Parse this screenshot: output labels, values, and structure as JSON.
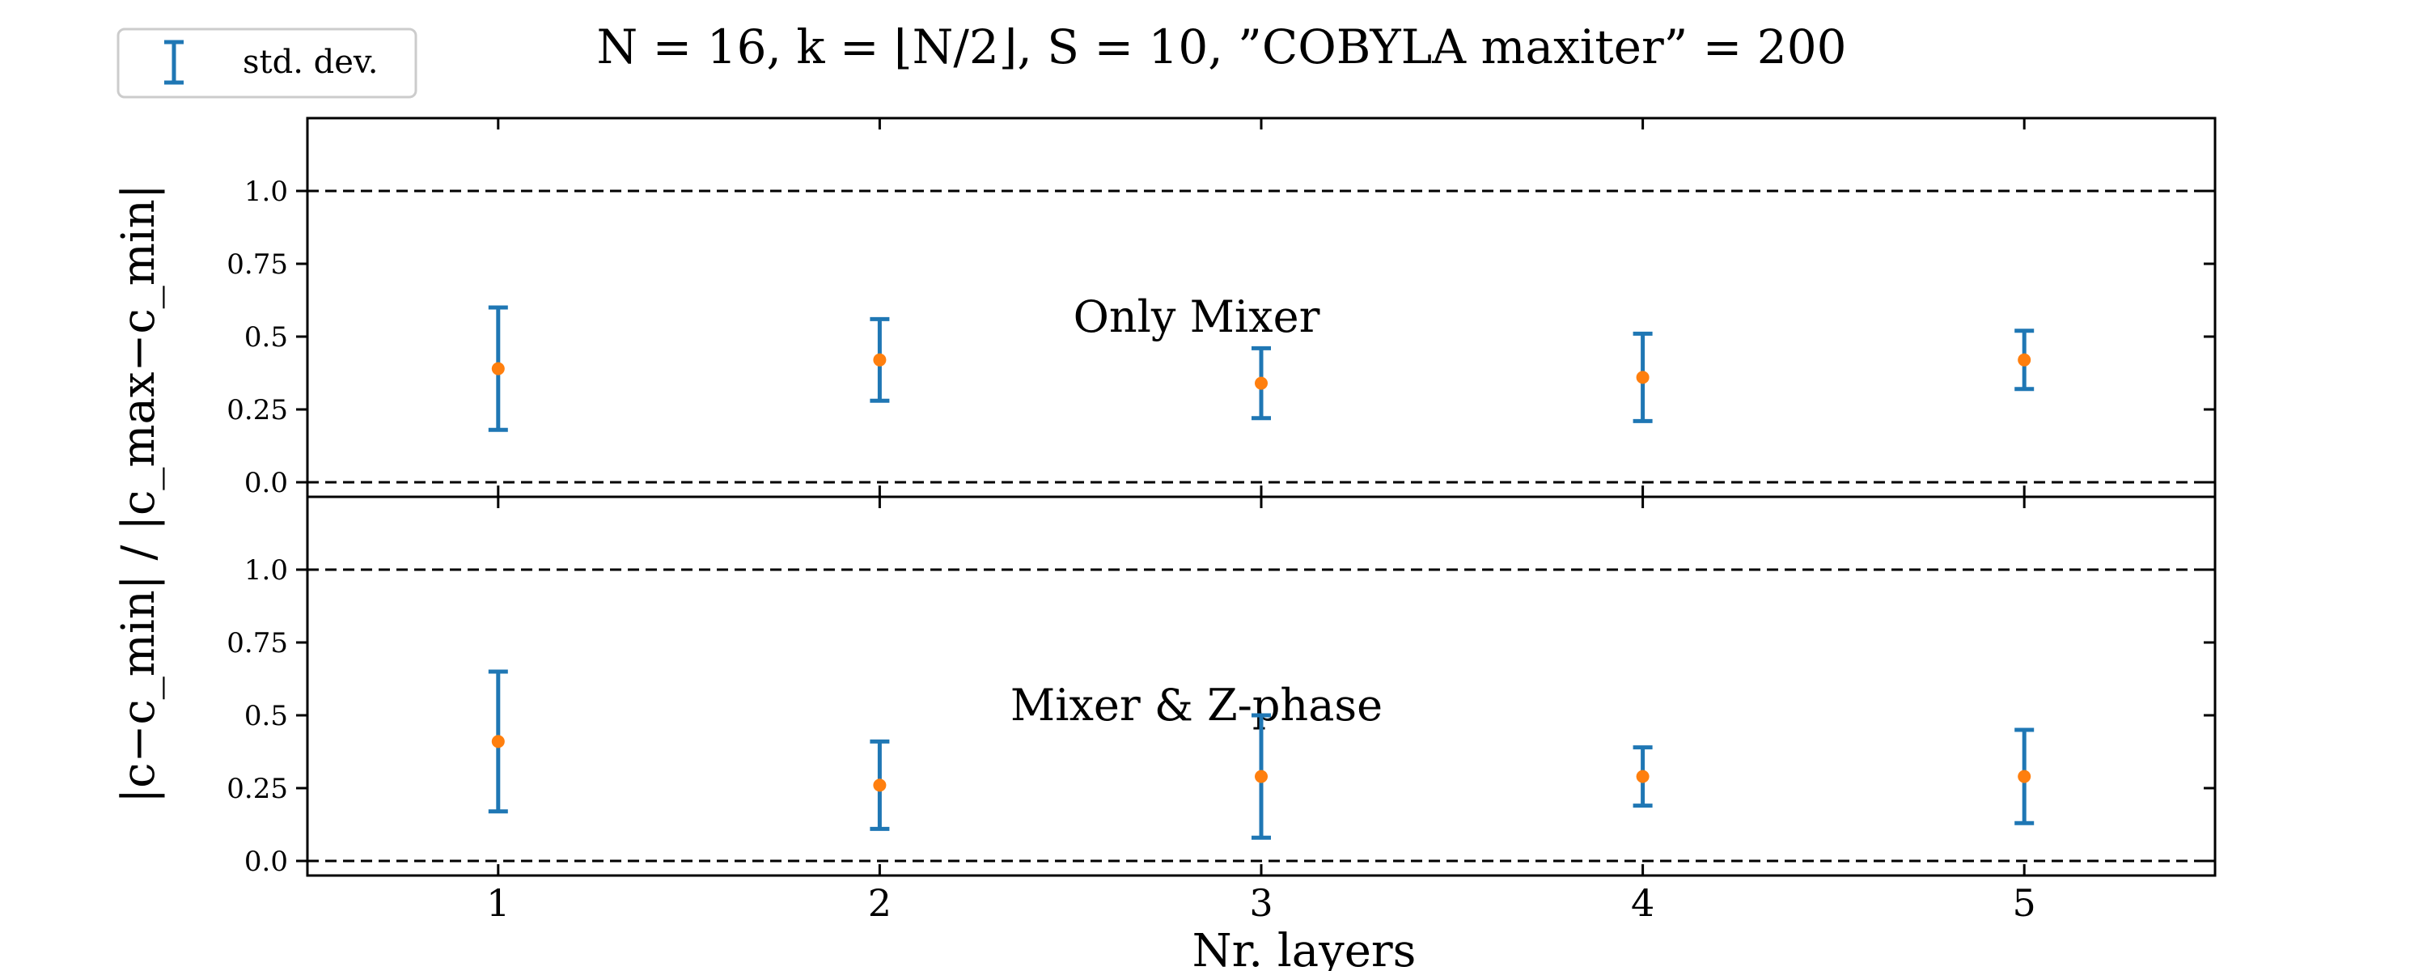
{
  "chart_data": {
    "type": "errorbar",
    "title": "N = 16,    k = ⌊N/2⌋,    S = 10,    ”COBYLA maxiter” = 200",
    "xlabel": "Nr. layers",
    "ylabel": "|c−c_min| / |c_max−c_min|",
    "legend": {
      "label": "std. dev.",
      "position": "top-left"
    },
    "colors": {
      "errorbar": "#1f77b4",
      "marker": "#ff7f0e",
      "reference_line": "#000000"
    },
    "x": [
      1,
      2,
      3,
      4,
      5
    ],
    "xlim": [
      0.5,
      5.5
    ],
    "ylim": [
      -0.05,
      1.25
    ],
    "yticks": [
      0.0,
      0.25,
      0.5,
      0.75,
      1.0
    ],
    "ytick_labels": [
      "0.0",
      "0.25",
      "0.5",
      "0.75",
      "1.0"
    ],
    "reference_lines": [
      0.0,
      1.0
    ],
    "grid": false,
    "panels": [
      {
        "label": "Only Mixer",
        "mean": [
          0.39,
          0.42,
          0.34,
          0.36,
          0.42
        ],
        "std": [
          0.21,
          0.14,
          0.12,
          0.15,
          0.1
        ]
      },
      {
        "label": "Mixer & Z-phase",
        "mean": [
          0.41,
          0.26,
          0.29,
          0.29,
          0.29
        ],
        "std": [
          0.24,
          0.15,
          0.21,
          0.1,
          0.16
        ]
      }
    ]
  }
}
